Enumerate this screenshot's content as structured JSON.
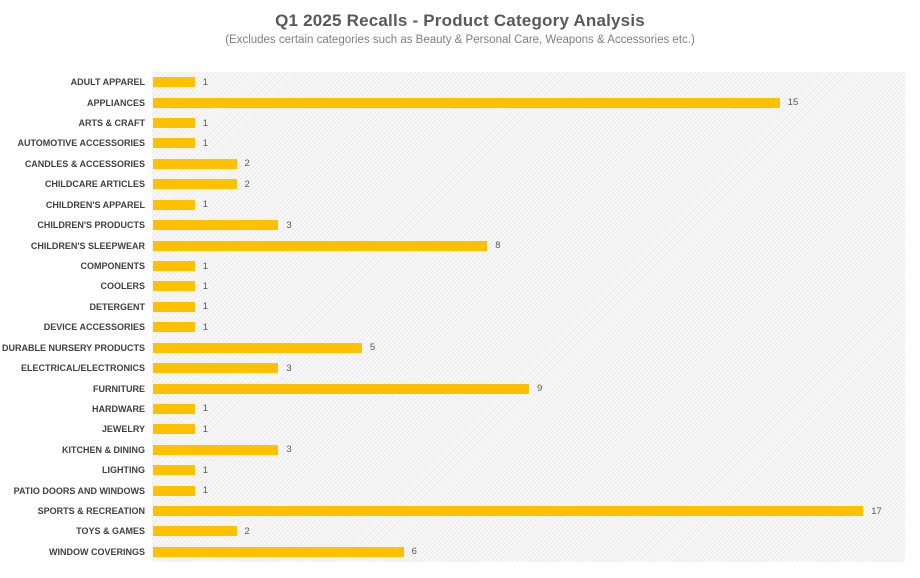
{
  "chart_data": {
    "type": "bar",
    "orientation": "horizontal",
    "title": "Q1 2025 Recalls - Product Category Analysis",
    "subtitle": "(Excludes certain categories such as Beauty & Personal Care, Weapons & Accessories etc.)",
    "categories": [
      "ADULT APPAREL",
      "APPLIANCES",
      "ARTS & CRAFT",
      "AUTOMOTIVE ACCESSORIES",
      "CANDLES & ACCESSORIES",
      "CHILDCARE ARTICLES",
      "CHILDREN'S APPAREL",
      "CHILDREN'S PRODUCTS",
      "CHILDREN'S SLEEPWEAR",
      "COMPONENTS",
      "COOLERS",
      "DETERGENT",
      "DEVICE ACCESSORIES",
      "DURABLE NURSERY PRODUCTS",
      "ELECTRICAL/ELECTRONICS",
      "FURNITURE",
      "HARDWARE",
      "JEWELRY",
      "KITCHEN & DINING",
      "LIGHTING",
      "PATIO DOORS AND WINDOWS",
      "SPORTS & RECREATION",
      "TOYS & GAMES",
      "WINDOW COVERINGS"
    ],
    "values": [
      1,
      15,
      1,
      1,
      2,
      2,
      1,
      3,
      8,
      1,
      1,
      1,
      1,
      5,
      3,
      9,
      1,
      1,
      3,
      1,
      1,
      17,
      2,
      6
    ],
    "xlim": [
      0,
      18
    ],
    "grid": false,
    "legend": false,
    "data_labels": true,
    "xlabel": "",
    "ylabel": ""
  },
  "colors": {
    "bar": "#FFC000",
    "title": "#595959",
    "subtitle": "#7F7F7F",
    "category_label": "#404040",
    "value_label": "#595959",
    "plot_hatch_line": "#EAEAEA"
  }
}
